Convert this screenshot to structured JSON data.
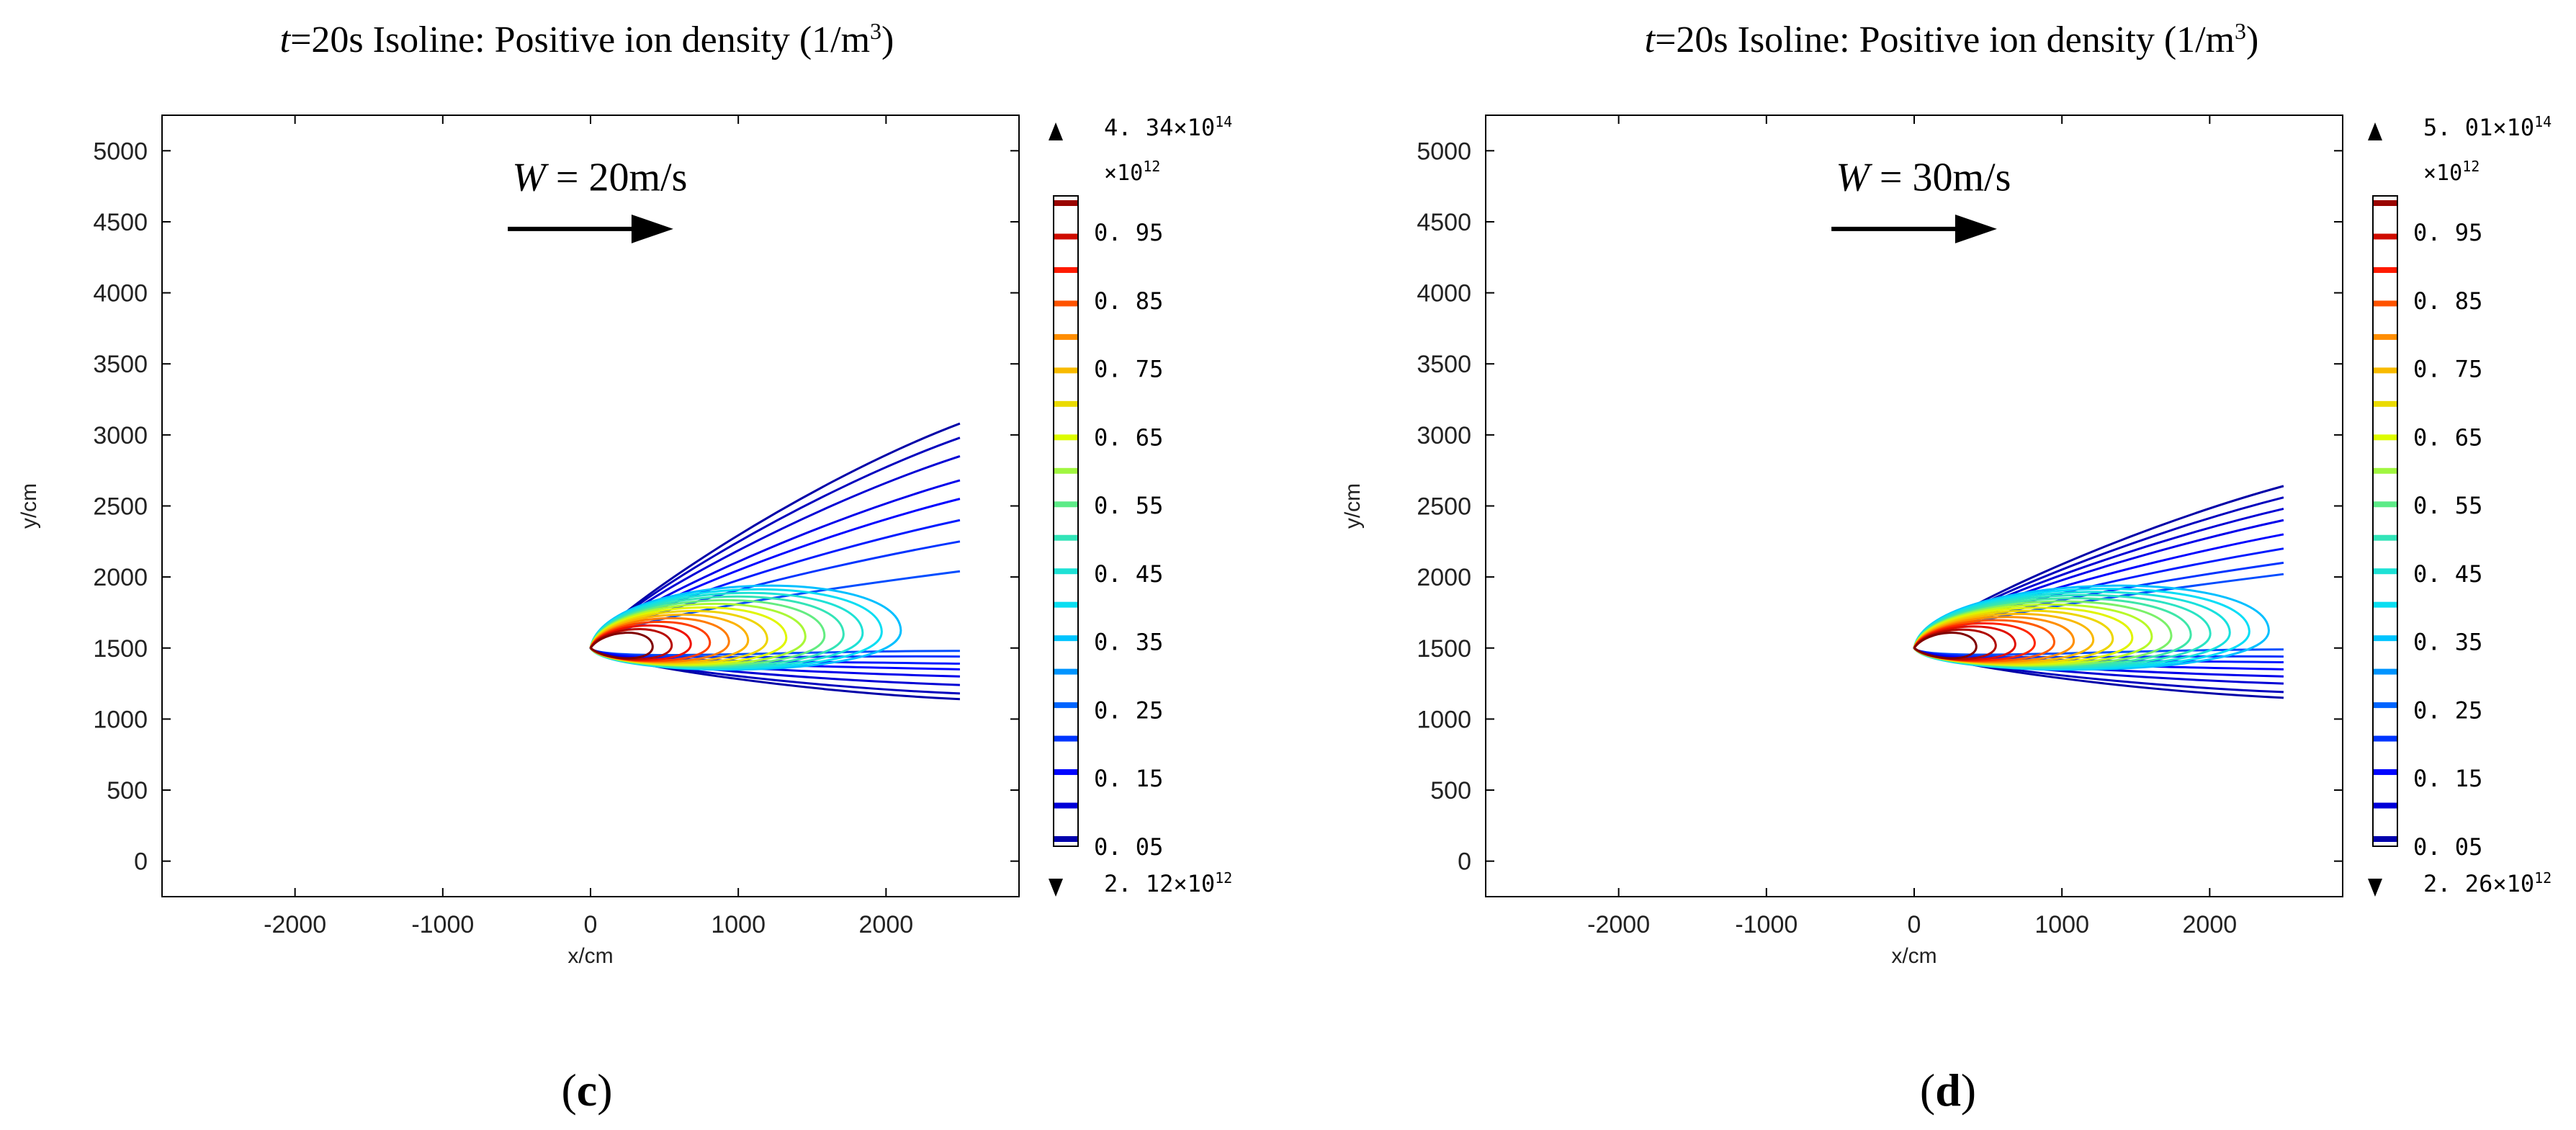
{
  "chart_data": [
    {
      "panel_label": "c",
      "type": "contour",
      "title_time": "t",
      "title_time_value": "=20s",
      "title_text": "Isoline: Positive ion density (1/m",
      "title_sup": "3",
      "title_close": ")",
      "wind_label_var": "W",
      "wind_label_value": "= 20m/s",
      "xlabel": "x/cm",
      "ylabel": "y/cm",
      "xlim": [
        -2900,
        2900
      ],
      "ylim": [
        -250,
        5250
      ],
      "xticks": [
        -2000,
        -1000,
        0,
        1000,
        2000
      ],
      "yticks": [
        0,
        500,
        1000,
        1500,
        2000,
        2500,
        3000,
        3500,
        4000,
        4500,
        5000
      ],
      "source_x": 0,
      "source_y": 1500,
      "x_end": 2500,
      "upper_edge_y": [
        2040,
        2250,
        2400,
        2550,
        2680,
        2850,
        2980,
        3080
      ],
      "lower_edge_y": [
        1480,
        1440,
        1390,
        1350,
        1300,
        1240,
        1180,
        1140
      ],
      "closed_levels": 14,
      "closed_max_x": 2100,
      "colorbar": {
        "max_label": "4. 34×10",
        "max_exp": "14",
        "scale_label": "×10",
        "scale_exp": "12",
        "min_label": "2. 12×10",
        "min_exp": "12",
        "ticks": [
          "0. 95",
          "0. 85",
          "0. 75",
          "0. 65",
          "0. 55",
          "0. 45",
          "0. 35",
          "0. 25",
          "0. 15",
          "0. 05"
        ]
      }
    },
    {
      "panel_label": "d",
      "type": "contour",
      "title_time": "t",
      "title_time_value": "=20s",
      "title_text": "Isoline: Positive ion density (1/m",
      "title_sup": "3",
      "title_close": ")",
      "wind_label_var": "W",
      "wind_label_value": "= 30m/s",
      "xlabel": "x/cm",
      "ylabel": "y/cm",
      "xlim": [
        -2900,
        2900
      ],
      "ylim": [
        -250,
        5250
      ],
      "xticks": [
        -2000,
        -1000,
        0,
        1000,
        2000
      ],
      "yticks": [
        0,
        500,
        1000,
        1500,
        2000,
        2500,
        3000,
        3500,
        4000,
        4500,
        5000
      ],
      "source_x": 0,
      "source_y": 1500,
      "x_end": 2500,
      "upper_edge_y": [
        2020,
        2100,
        2200,
        2300,
        2400,
        2480,
        2560,
        2640
      ],
      "lower_edge_y": [
        1490,
        1440,
        1400,
        1350,
        1300,
        1250,
        1190,
        1150
      ],
      "closed_levels": 16,
      "closed_max_x": 2400,
      "colorbar": {
        "max_label": "5. 01×10",
        "max_exp": "14",
        "scale_label": "×10",
        "scale_exp": "12",
        "min_label": "2. 26×10",
        "min_exp": "12",
        "ticks": [
          "0. 95",
          "0. 85",
          "0. 75",
          "0. 65",
          "0. 55",
          "0. 45",
          "0. 35",
          "0. 25",
          "0. 15",
          "0. 05"
        ]
      }
    }
  ]
}
